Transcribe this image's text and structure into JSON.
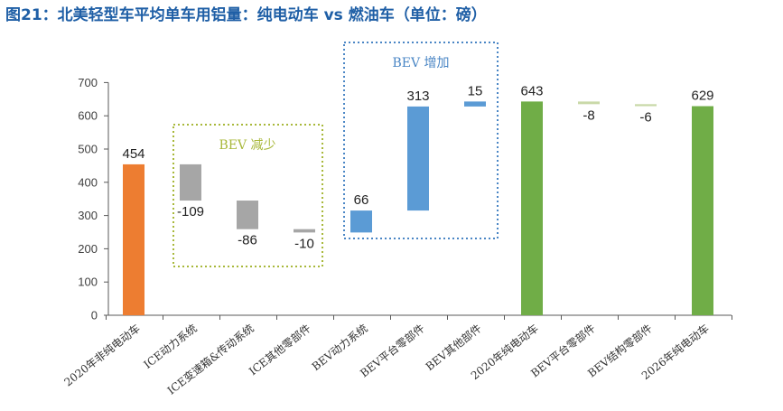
{
  "title": "图21：北美轻型车平均单车用铝量：纯电动车 vs 燃油车（单位：磅）",
  "colors": {
    "orange": "#ed7d31",
    "gray": "#a6a6a6",
    "blue": "#5b9bd5",
    "green": "#70ad47",
    "green_small": "#c9d9a8",
    "box_green": "#a8b83a",
    "box_blue": "#4a86c5"
  },
  "annotations": {
    "decrease_box_label": "BEV 减少",
    "increase_box_label": "BEV 增加"
  },
  "chart_data": {
    "type": "bar",
    "subtype": "waterfall",
    "ylim": [
      0,
      700
    ],
    "yticks": [
      "0",
      "100",
      "200",
      "300",
      "400",
      "500",
      "600",
      "700"
    ],
    "grid": false,
    "categories": [
      "2020年非纯电动车",
      "ICE动力系统",
      "ICE变速箱&传动系统",
      "ICE其他零部件",
      "BEV动力系统",
      "BEV平台零部件",
      "BEV其他部件",
      "2020年纯电动车",
      "BEV平台零部件",
      "BEV结构零部件",
      "2026年纯电动车"
    ],
    "bars": [
      {
        "base": 0,
        "top": 454,
        "label": "454",
        "color": "orange"
      },
      {
        "base": 345,
        "top": 454,
        "label": "-109",
        "color": "gray"
      },
      {
        "base": 259,
        "top": 345,
        "label": "-86",
        "color": "gray"
      },
      {
        "base": 249,
        "top": 259,
        "label": "-10",
        "color": "gray"
      },
      {
        "base": 249,
        "top": 315,
        "label": "66",
        "color": "blue"
      },
      {
        "base": 315,
        "top": 628,
        "label": "313",
        "color": "blue"
      },
      {
        "base": 628,
        "top": 643,
        "label": "15",
        "color": "blue"
      },
      {
        "base": 0,
        "top": 643,
        "label": "643",
        "color": "green"
      },
      {
        "base": 635,
        "top": 643,
        "label": "-8",
        "color": "green_small"
      },
      {
        "base": 629,
        "top": 635,
        "label": "-6",
        "color": "green_small"
      },
      {
        "base": 0,
        "top": 629,
        "label": "629",
        "color": "green"
      }
    ]
  }
}
